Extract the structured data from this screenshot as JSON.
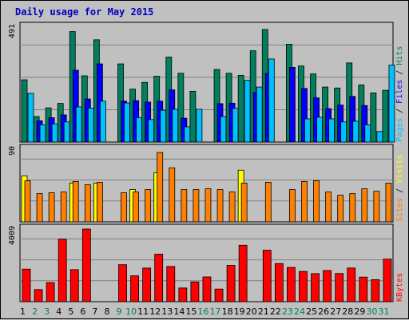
{
  "title": "Daily usage for May 2015",
  "chart_data": {
    "type": "bar",
    "title": "Daily usage for May 2015",
    "days": [
      "1",
      "2",
      "3",
      "4",
      "5",
      "6",
      "7",
      "8",
      "9",
      "10",
      "11",
      "12",
      "13",
      "14",
      "15",
      "16",
      "17",
      "18",
      "19",
      "20",
      "21",
      "22",
      "23",
      "24",
      "25",
      "26",
      "27",
      "28",
      "29",
      "30",
      "31"
    ],
    "weekend_days": [
      "2",
      "3",
      "9",
      "10",
      "16",
      "17",
      "23",
      "24",
      "30",
      "31"
    ],
    "panels": [
      {
        "max_label": "491",
        "ymax": 491,
        "right_labels": [
          "Pages",
          "Files",
          "Hits"
        ],
        "series": [
          {
            "name": "Hits",
            "color": "#00805c",
            "values": [
              266,
              109,
              146,
              165,
              472,
              283,
              437,
              0,
              334,
              226,
              255,
              281,
              363,
              294,
              217,
              0,
              310,
              294,
              285,
              390,
              481,
              0,
              418,
              325,
              291,
              235,
              231,
              338,
              244,
              210,
              221
            ]
          },
          {
            "name": "Files",
            "color": "#0000ff",
            "values": [
              0,
              91,
              104,
              116,
              307,
              184,
              334,
              0,
              175,
              177,
              171,
              175,
              223,
              102,
              0,
              0,
              164,
              166,
              0,
              212,
              293,
              0,
              319,
              229,
              189,
              143,
              158,
              195,
              156,
              0,
              0
            ]
          },
          {
            "name": "Pages",
            "color": "#00c0ff",
            "values": [
              208,
              74,
              78,
              86,
              150,
              145,
              175,
              0,
              167,
              104,
              96,
              136,
              140,
              65,
              140,
              0,
              109,
              144,
              264,
              235,
              355,
              0,
              0,
              99,
              106,
              99,
              86,
              89,
              74,
              45,
              329
            ]
          }
        ]
      },
      {
        "max_label": "90",
        "ymax": 90,
        "right_labels": [
          "Sites",
          "Visits"
        ],
        "series": [
          {
            "name": "Visits",
            "color": "#ffff00",
            "values": [
              57,
              0,
              0,
              0,
              48,
              0,
              48,
              0,
              0,
              40,
              0,
              61,
              0,
              0,
              0,
              0,
              0,
              0,
              64,
              0,
              0,
              0,
              0,
              0,
              0,
              0,
              0,
              0,
              0,
              0,
              0
            ]
          },
          {
            "name": "Sites",
            "color": "#ff8000",
            "values": [
              51,
              35,
              36,
              37,
              50,
              46,
              49,
              0,
              36,
              37,
              40,
              86,
              67,
              40,
              40,
              41,
              40,
              37,
              48,
              0,
              49,
              0,
              40,
              50,
              51,
              37,
              33,
              35,
              41,
              38,
              48
            ]
          }
        ]
      },
      {
        "max_label": "4009",
        "ymax": 4009,
        "right_labels": [
          "KBytes"
        ],
        "series": [
          {
            "name": "KBytes",
            "color": "#ff0000",
            "values": [
              1797,
              669,
              1054,
              3450,
              1767,
              4009,
              0,
              0,
              2040,
              1426,
              1853,
              2623,
              1941,
              755,
              1091,
              1366,
              696,
              2005,
              3116,
              0,
              2839,
              2101,
              1891,
              1669,
              1547,
              1719,
              1554,
              1857,
              1357,
              1212,
              2347
            ]
          }
        ]
      }
    ]
  }
}
